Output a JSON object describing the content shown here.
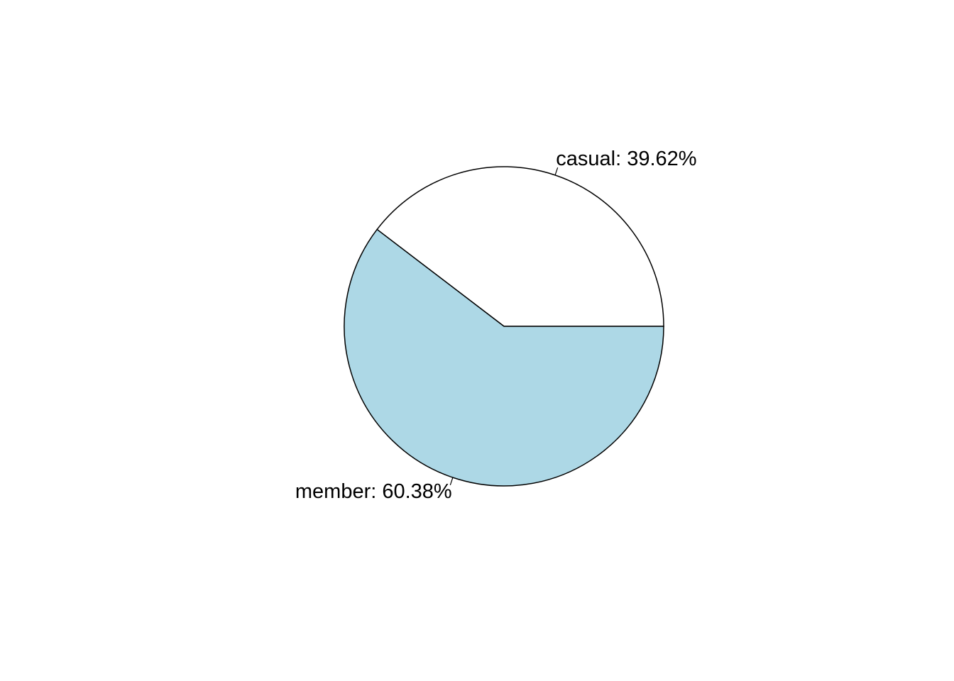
{
  "chart_data": {
    "type": "pie",
    "slices": [
      {
        "name": "casual",
        "value": 39.62,
        "label": "casual: 39.62%",
        "color": "#ffffff"
      },
      {
        "name": "member",
        "value": 60.38,
        "label": "member: 60.38%",
        "color": "#add8e6"
      }
    ],
    "start_angle": "3 o'clock",
    "direction": "counterclockwise",
    "outline_color": "#000000",
    "title": "",
    "legend": "none"
  }
}
